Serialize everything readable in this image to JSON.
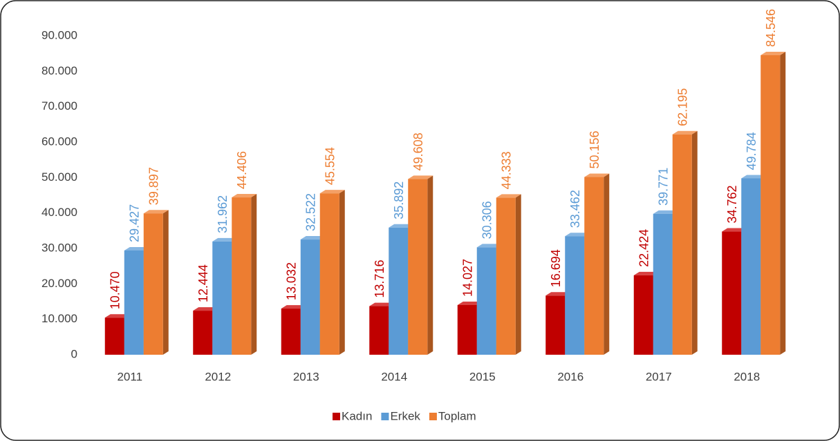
{
  "chart_data": {
    "type": "bar3d",
    "categories": [
      "2011",
      "2012",
      "2013",
      "2014",
      "2015",
      "2016",
      "2017",
      "2018"
    ],
    "series": [
      {
        "name": "Kadın",
        "color": "#c00000",
        "side": "#850000",
        "top": "#d84040",
        "values": [
          10470,
          12444,
          13032,
          13716,
          14027,
          16694,
          22424,
          34762
        ],
        "value_labels": [
          "10.470",
          "12.444",
          "13.032",
          "13.716",
          "14.027",
          "16.694",
          "22.424",
          "34.762"
        ]
      },
      {
        "name": "Erkek",
        "color": "#5b9bd5",
        "side": "#3f6f9c",
        "top": "#86b6e2",
        "values": [
          29427,
          31962,
          32522,
          35892,
          30306,
          33462,
          39771,
          49784
        ],
        "value_labels": [
          "29.427",
          "31.962",
          "32.522",
          "35.892",
          "30.306",
          "33.462",
          "39.771",
          "49.784"
        ]
      },
      {
        "name": "Toplam",
        "color": "#ed7d31",
        "side": "#a9561f",
        "top": "#f4a066",
        "values": [
          39897,
          44406,
          45554,
          49608,
          44333,
          50156,
          62195,
          84546
        ],
        "value_labels": [
          "39.897",
          "44.406",
          "45.554",
          "49.608",
          "44.333",
          "50.156",
          "62.195",
          "84.546"
        ]
      }
    ],
    "ylim": [
      0,
      90000
    ],
    "yticks": [
      0,
      {
        "value": 10000,
        "label": "10.000"
      },
      {
        "value": 20000,
        "label": "20.000"
      },
      {
        "value": 30000,
        "label": "30.000"
      },
      {
        "value": 40000,
        "label": "40.000"
      },
      {
        "value": 50000,
        "label": "50.000"
      },
      {
        "value": 60000,
        "label": "60.000"
      },
      {
        "value": 70000,
        "label": "70.000"
      },
      {
        "value": 80000,
        "label": "80.000"
      },
      {
        "value": 90000,
        "label": "90.000"
      }
    ],
    "grid": false,
    "legend": "bottom"
  }
}
